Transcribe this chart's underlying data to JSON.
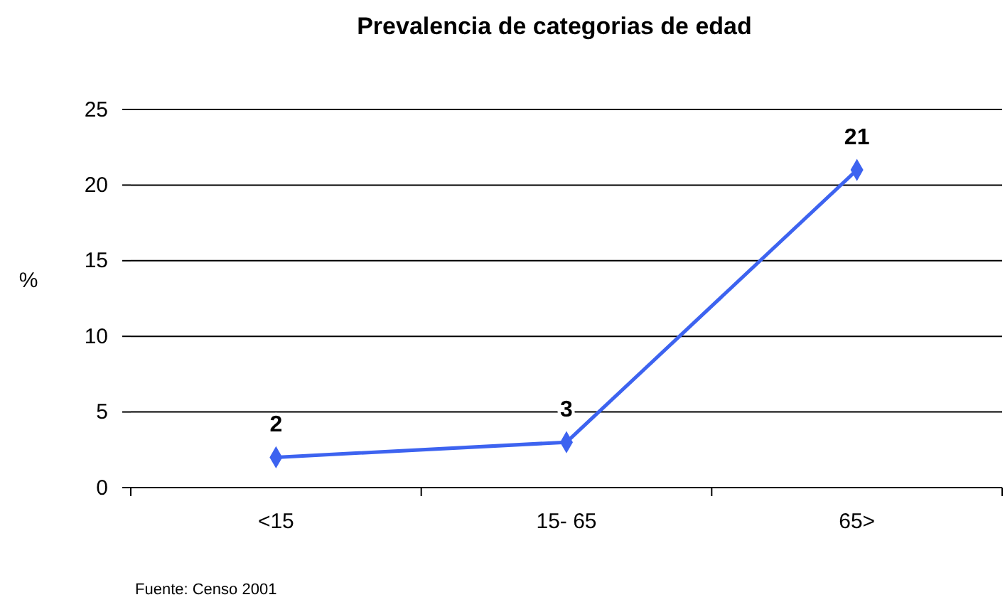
{
  "chart_data": {
    "type": "line",
    "title": "Prevalencia de categorias de edad",
    "ylabel": "%",
    "categories": [
      "<15",
      "15- 65",
      "65>"
    ],
    "series": [
      {
        "color": "#3d63f0",
        "values": [
          2,
          3,
          21
        ]
      }
    ],
    "ylim": [
      0,
      25
    ],
    "yticks": [
      0,
      5,
      10,
      15,
      20,
      25
    ],
    "grid": "y",
    "marker": "diamond",
    "data_labels": true,
    "annotations": [
      "Fuente: Censo 2001"
    ]
  }
}
